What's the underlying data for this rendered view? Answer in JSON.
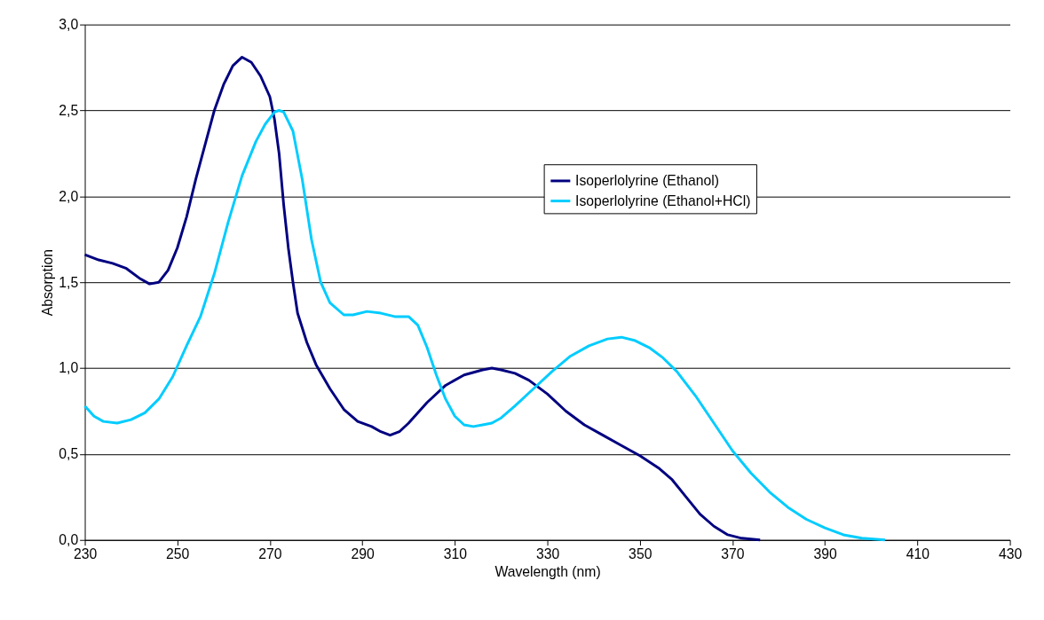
{
  "chart_data": {
    "type": "line",
    "xlabel": "Wavelength (nm)",
    "ylabel": "Absorption",
    "xlim": [
      230,
      430
    ],
    "xticks": [
      230,
      250,
      270,
      290,
      310,
      330,
      350,
      370,
      390,
      410,
      430
    ],
    "ylim": [
      0,
      3
    ],
    "yticks": [
      {
        "value": 0,
        "label": "0,0"
      },
      {
        "value": 0.5,
        "label": "0,5"
      },
      {
        "value": 1,
        "label": "1,0"
      },
      {
        "value": 1.5,
        "label": "1,5"
      },
      {
        "value": 2,
        "label": "2,0"
      },
      {
        "value": 2.5,
        "label": "2,5"
      },
      {
        "value": 3,
        "label": "3,0"
      }
    ],
    "grid": "y",
    "legend": "top right",
    "marker": "none",
    "line_style": "solid",
    "series": [
      {
        "name": "Isoperlolyrine (Ethanol)",
        "color": "#000080",
        "x": [
          230,
          233,
          236,
          239,
          242,
          244,
          246,
          248,
          250,
          252,
          254,
          256,
          258,
          260,
          262,
          264,
          266,
          268,
          270,
          271,
          272,
          273,
          274,
          275,
          276,
          278,
          280,
          283,
          286,
          289,
          292,
          294,
          296,
          298,
          300,
          304,
          308,
          312,
          316,
          318,
          320,
          323,
          326,
          330,
          334,
          338,
          342,
          346,
          350,
          354,
          357,
          360,
          363,
          366,
          369,
          372,
          376
        ],
        "values": [
          1.66,
          1.63,
          1.61,
          1.58,
          1.52,
          1.49,
          1.5,
          1.57,
          1.7,
          1.88,
          2.1,
          2.3,
          2.5,
          2.65,
          2.76,
          2.81,
          2.78,
          2.7,
          2.58,
          2.45,
          2.25,
          1.95,
          1.7,
          1.5,
          1.32,
          1.15,
          1.02,
          0.88,
          0.76,
          0.69,
          0.66,
          0.63,
          0.61,
          0.63,
          0.68,
          0.8,
          0.9,
          0.96,
          0.99,
          1.0,
          0.99,
          0.97,
          0.93,
          0.85,
          0.75,
          0.67,
          0.61,
          0.55,
          0.49,
          0.42,
          0.35,
          0.25,
          0.15,
          0.08,
          0.03,
          0.01,
          0.0
        ]
      },
      {
        "name": "Isoperlolyrine (Ethanol+HCl)",
        "color": "#00ccff",
        "x": [
          230,
          232,
          234,
          237,
          240,
          243,
          246,
          249,
          252,
          255,
          258,
          261,
          264,
          267,
          269,
          271,
          272,
          273,
          275,
          277,
          279,
          281,
          283,
          286,
          288,
          291,
          294,
          297,
          300,
          302,
          304,
          306,
          308,
          310,
          312,
          314,
          316,
          318,
          320,
          323,
          327,
          331,
          335,
          339,
          343,
          346,
          349,
          352,
          355,
          358,
          362,
          366,
          370,
          374,
          378,
          382,
          386,
          390,
          394,
          398,
          403
        ],
        "values": [
          0.78,
          0.72,
          0.69,
          0.68,
          0.7,
          0.74,
          0.82,
          0.95,
          1.13,
          1.3,
          1.55,
          1.85,
          2.12,
          2.32,
          2.42,
          2.49,
          2.5,
          2.49,
          2.38,
          2.1,
          1.75,
          1.5,
          1.38,
          1.31,
          1.31,
          1.33,
          1.32,
          1.3,
          1.3,
          1.25,
          1.12,
          0.96,
          0.82,
          0.72,
          0.67,
          0.66,
          0.67,
          0.68,
          0.71,
          0.78,
          0.88,
          0.98,
          1.07,
          1.13,
          1.17,
          1.18,
          1.16,
          1.12,
          1.06,
          0.98,
          0.84,
          0.68,
          0.52,
          0.39,
          0.28,
          0.19,
          0.12,
          0.07,
          0.03,
          0.01,
          0.0
        ]
      }
    ]
  }
}
